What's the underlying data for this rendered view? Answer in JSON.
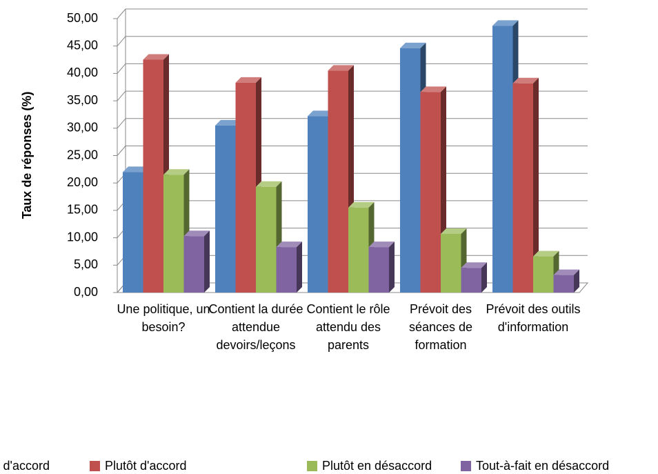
{
  "chart_data": {
    "type": "bar3d",
    "y_label": "Taux de réponses (%)",
    "categories": [
      "Une politique, un besoin?",
      "Contient la durée attendue devoirs/leçons",
      "Contient le rôle attendu des parents",
      "Prévoit des séances de formation",
      "Prévoit des outils d'information"
    ],
    "series": [
      {
        "name": "Tout-à-fait d'accord",
        "color": "#4f81bd",
        "values": [
          22.0,
          30.5,
          32.2,
          44.6,
          48.7
        ]
      },
      {
        "name": "Plutôt d'accord",
        "color": "#c0504d",
        "values": [
          42.5,
          38.3,
          40.5,
          36.6,
          38.2
        ]
      },
      {
        "name": "Plutôt en désaccord",
        "color": "#9bbb59",
        "values": [
          21.5,
          19.3,
          15.5,
          10.7,
          6.6
        ]
      },
      {
        "name": "Tout-à-fait en désaccord",
        "color": "#8064a2",
        "values": [
          10.3,
          8.3,
          8.3,
          4.5,
          3.2
        ]
      }
    ],
    "ylim": [
      0,
      50
    ],
    "yticks": [
      {
        "value": 0,
        "label": "0,00"
      },
      {
        "value": 5,
        "label": "5,00"
      },
      {
        "value": 10,
        "label": "10,00"
      },
      {
        "value": 15,
        "label": "15,00"
      },
      {
        "value": 20,
        "label": "20,00"
      },
      {
        "value": 25,
        "label": "25,00"
      },
      {
        "value": 30,
        "label": "30,00"
      },
      {
        "value": 35,
        "label": "35,00"
      },
      {
        "value": 40,
        "label": "40,00"
      },
      {
        "value": 45,
        "label": "45,00"
      },
      {
        "value": 50,
        "label": "50,00"
      }
    ],
    "grid": true,
    "legend": "bottom"
  }
}
